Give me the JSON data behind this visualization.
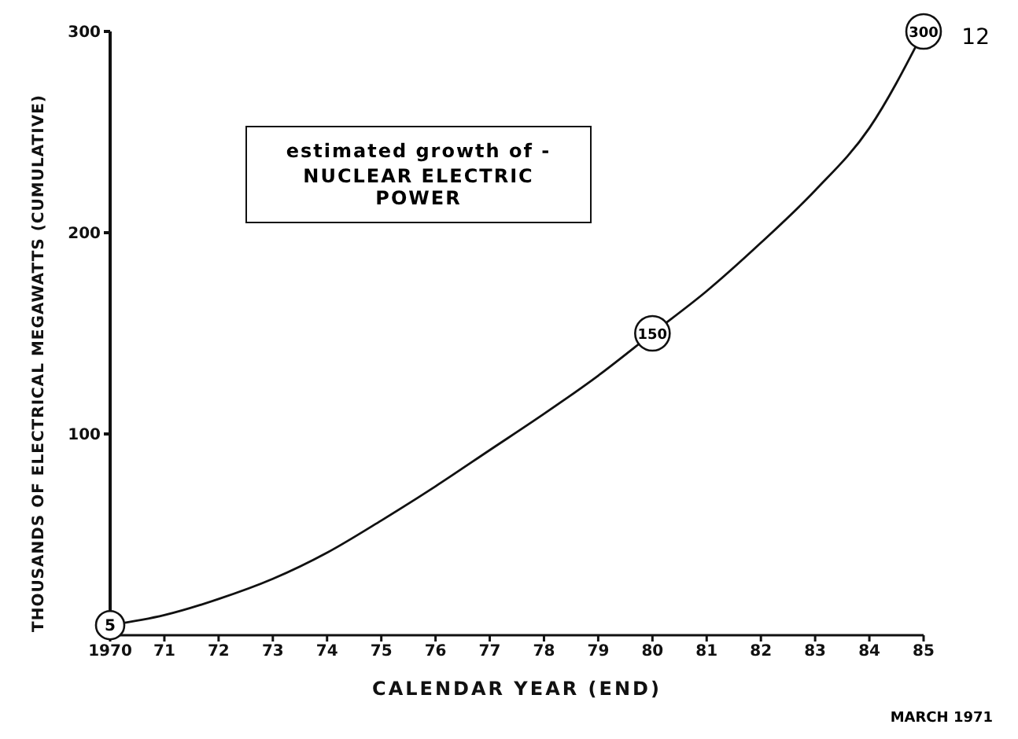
{
  "chart_data": {
    "type": "line",
    "title": "estimated growth of -",
    "subtitle": "NUCLEAR ELECTRIC POWER",
    "xlabel": "CALENDAR YEAR (END)",
    "ylabel": "THOUSANDS OF ELECTRICAL MEGAWATTS (CUMULATIVE)",
    "annotations": [
      "12",
      "MARCH 1971"
    ],
    "x": [
      1970,
      1971,
      1972,
      1973,
      1974,
      1975,
      1976,
      1977,
      1978,
      1979,
      1980,
      1981,
      1982,
      1983,
      1984,
      1985
    ],
    "series": [
      {
        "color": "#111111",
        "values": [
          5,
          10,
          18,
          28,
          41,
          57,
          74,
          92,
          110,
          129,
          150,
          171,
          195,
          221,
          252,
          300
        ],
        "value_labels": [
          "5",
          null,
          null,
          null,
          null,
          null,
          null,
          null,
          null,
          null,
          "150",
          null,
          null,
          null,
          null,
          "300"
        ]
      }
    ],
    "xlim": [
      1970,
      1985
    ],
    "xticks": [
      1970,
      {
        "value": 1971,
        "label": "71"
      },
      {
        "value": 1972,
        "label": "72"
      },
      {
        "value": 1973,
        "label": "73"
      },
      {
        "value": 1974,
        "label": "74"
      },
      {
        "value": 1975,
        "label": "75"
      },
      {
        "value": 1976,
        "label": "76"
      },
      {
        "value": 1977,
        "label": "77"
      },
      {
        "value": 1978,
        "label": "78"
      },
      {
        "value": 1979,
        "label": "79"
      },
      {
        "value": 1980,
        "label": "80"
      },
      {
        "value": 1981,
        "label": "81"
      },
      {
        "value": 1982,
        "label": "82"
      },
      {
        "value": 1983,
        "label": "83"
      },
      {
        "value": 1984,
        "label": "84"
      },
      {
        "value": 1985,
        "label": "85"
      }
    ],
    "ylim": [
      0,
      300
    ],
    "yticks": [
      {
        "value": 0,
        "label": null
      },
      100,
      200,
      300
    ],
    "grid": false,
    "legend": false,
    "marker": "none",
    "line_style": "solid"
  }
}
